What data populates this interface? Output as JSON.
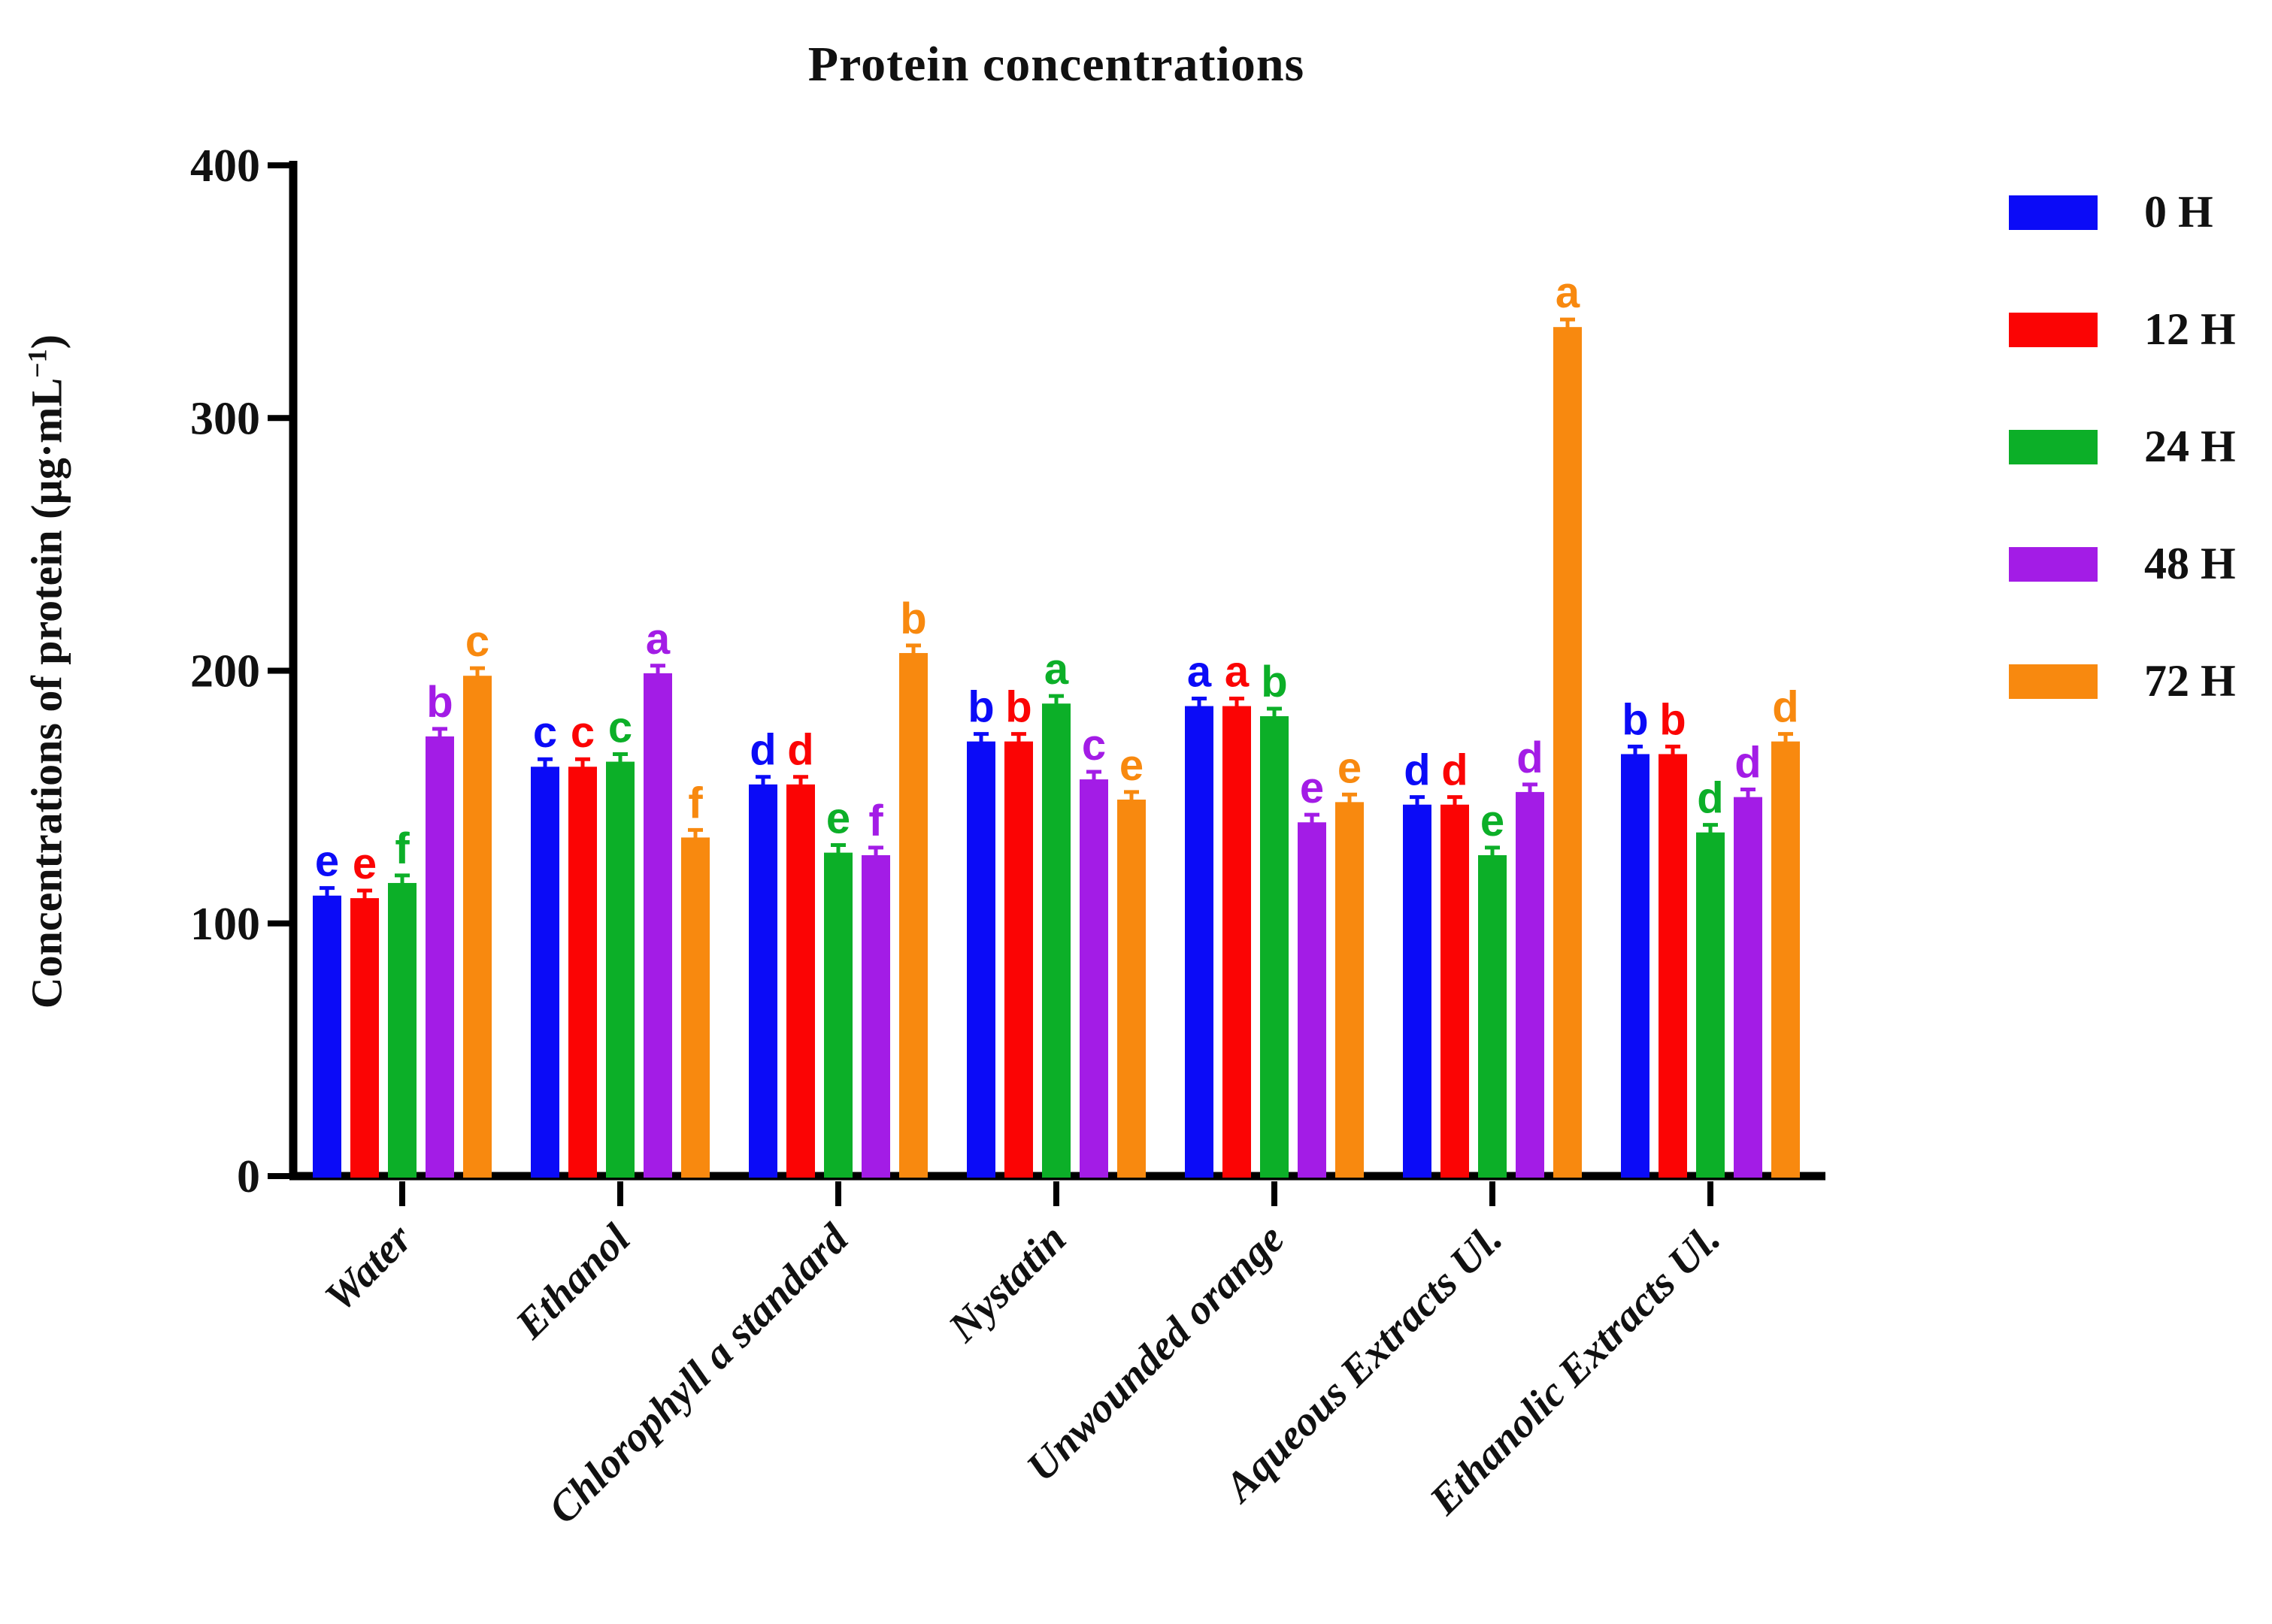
{
  "figure_title": "Protein concentrations",
  "chart_data": {
    "type": "bar",
    "title": "Protein concentrations",
    "ylabel": "Concentrations of protein (µg·mL−1)",
    "ylabel_parts": {
      "main": "Concentrations of protein (µg·mL",
      "sup": "−1",
      "end": ")"
    },
    "ylim": [
      0,
      400
    ],
    "yticks": [
      0,
      100,
      200,
      300,
      400
    ],
    "grid": false,
    "legend_position": "right",
    "categories": [
      "Water",
      "Ethanol",
      "Chlorophyll a standard",
      "Nystatin",
      "Unwounded orange",
      "Aqueous Extracts Ul.",
      "Ethanolic Extracts Ul."
    ],
    "series": [
      {
        "name": "0 H",
        "color": "#0B0BF7",
        "values": [
          111,
          162,
          155,
          172,
          186,
          147,
          167
        ],
        "letters": [
          "e",
          "c",
          "d",
          "b",
          "a",
          "d",
          "b"
        ]
      },
      {
        "name": "12 H",
        "color": "#FB0404",
        "values": [
          110,
          162,
          155,
          172,
          186,
          147,
          167
        ],
        "letters": [
          "e",
          "c",
          "d",
          "b",
          "a",
          "d",
          "b"
        ]
      },
      {
        "name": "24 H",
        "color": "#0CAF28",
        "values": [
          116,
          164,
          128,
          187,
          182,
          127,
          136
        ],
        "letters": [
          "f",
          "c",
          "e",
          "a",
          "b",
          "e",
          "d"
        ]
      },
      {
        "name": "48 H",
        "color": "#A31CE6",
        "values": [
          174,
          199,
          127,
          157,
          140,
          152,
          150
        ],
        "letters": [
          "b",
          "a",
          "f",
          "c",
          "e",
          "d",
          "d"
        ]
      },
      {
        "name": "72 H",
        "color": "#F8890F",
        "values": [
          198,
          134,
          207,
          149,
          148,
          336,
          172
        ],
        "letters": [
          "c",
          "f",
          "b",
          "e",
          "e",
          "a",
          "d"
        ]
      }
    ],
    "error_bar_value": 3
  }
}
